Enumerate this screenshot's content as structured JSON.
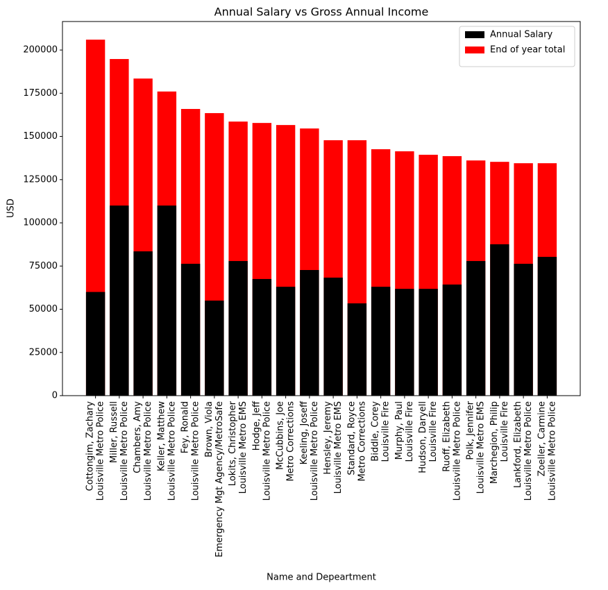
{
  "chart_data": {
    "type": "bar",
    "title": "Annual Salary vs Gross Annual Income",
    "x_label": "Name and Depeartment",
    "y_label": "USD",
    "categories": [
      [
        "Cottongim, Zachary",
        "Louisville Metro Police"
      ],
      [
        "Miller, Russell",
        "Louisville Metro Police"
      ],
      [
        "Chambers, Amy",
        "Louisville Metro Police"
      ],
      [
        "Keller, Matthew",
        "Louisville Metro Police"
      ],
      [
        "Fey, Ronald",
        "Louisville Metro Police"
      ],
      [
        "Brown, Viola",
        "Emergency Mgt Agency/MetroSafe"
      ],
      [
        "Lokits, Christopher",
        "Louisville Metro EMS"
      ],
      [
        "Hodge, Jeff",
        "Louisville Metro Police"
      ],
      [
        "McCubbins, Joe",
        "Metro Corrections"
      ],
      [
        "Keeling, Joseff",
        "Louisville Metro Police"
      ],
      [
        "Hensley, Jeremy",
        "Louisville Metro EMS"
      ],
      [
        "Standard, Royce",
        "Metro Corrections"
      ],
      [
        "Biddle, Corey",
        "Louisville Fire"
      ],
      [
        "Murphy, Paul",
        "Louisville Fire"
      ],
      [
        "Hudson, Daryell",
        "Louisville Fire"
      ],
      [
        "Ruoff, Elizabeth",
        "Louisville Metro Police"
      ],
      [
        "Polk, Jennifer",
        "Louisville Metro EMS"
      ],
      [
        "Marchegion, Philip",
        "Louisville Fire"
      ],
      [
        "Lankford, Elizabeth",
        "Louisville Metro Police"
      ],
      [
        "Zoeller, Carmine",
        "Louisville Metro Police"
      ]
    ],
    "series": [
      {
        "name": "Annual Salary",
        "color": "#000000",
        "values": [
          60000,
          110000,
          83500,
          110000,
          76300,
          55000,
          77900,
          67500,
          63000,
          72700,
          68300,
          53400,
          63000,
          61800,
          61800,
          64300,
          77900,
          87600,
          76300,
          80300
        ]
      },
      {
        "name": "End of year total",
        "color": "#ff0000",
        "values": [
          206000,
          194800,
          183500,
          176000,
          165900,
          163500,
          158600,
          157800,
          156600,
          154600,
          147800,
          147800,
          142600,
          141400,
          139400,
          138600,
          136100,
          135300,
          134500,
          134500
        ]
      }
    ],
    "ylim": [
      0,
      216500
    ],
    "yticks": [
      0,
      25000,
      50000,
      75000,
      100000,
      125000,
      150000,
      175000,
      200000
    ],
    "legend": "upper right",
    "grid": false
  }
}
